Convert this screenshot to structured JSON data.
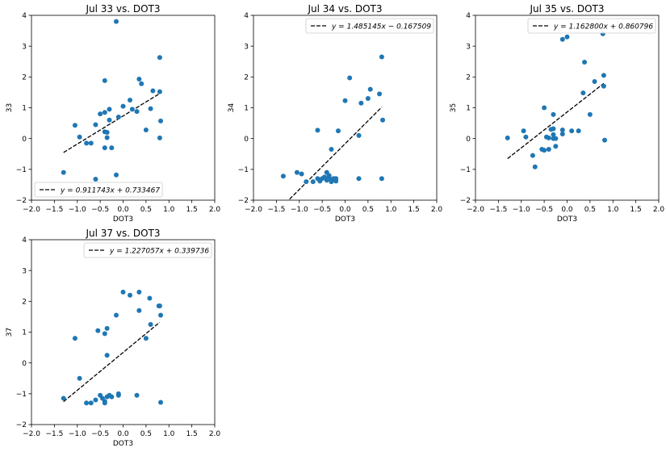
{
  "chart_data": [
    {
      "type": "scatter",
      "title": "Jul 33 vs. DOT3",
      "xlabel": "DOT3",
      "ylabel": "33",
      "xlim": [
        -2.0,
        2.0
      ],
      "ylim": [
        -2,
        4
      ],
      "xticks": [
        "−2.0",
        "−1.5",
        "−1.0",
        "−0.5",
        "0.0",
        "0.5",
        "1.0",
        "1.5",
        "2.0"
      ],
      "yticks": [
        "−2",
        "−1",
        "0",
        "1",
        "2",
        "3",
        "4"
      ],
      "legend": "bottom-left",
      "legend_text": "y = 0.911743x + 0.733467",
      "fit": {
        "slope": 0.911743,
        "intercept": 0.733467,
        "x_range": [
          -1.3,
          0.8
        ]
      },
      "point_color": "#1f77b4",
      "x": [
        -0.15,
        0.8,
        -0.4,
        0.35,
        0.4,
        0.65,
        0.8,
        -0.5,
        0.15,
        0.2,
        -0.4,
        -0.3,
        0.0,
        -0.1,
        0.6,
        0.5,
        0.3,
        -0.6,
        -0.4,
        -0.35,
        -0.3,
        -0.8,
        -0.95,
        -1.05,
        -0.7,
        -0.4,
        -0.25,
        -0.35,
        -0.6,
        -0.15,
        -1.3,
        0.82,
        0.8
      ],
      "y": [
        3.8,
        2.63,
        1.88,
        1.93,
        1.78,
        1.55,
        1.52,
        0.8,
        1.25,
        0.95,
        0.85,
        0.95,
        1.05,
        0.7,
        0.97,
        0.28,
        0.88,
        0.45,
        0.22,
        0.2,
        0.6,
        -0.15,
        0.05,
        0.43,
        -0.15,
        -0.3,
        -0.3,
        0.03,
        -1.32,
        -1.18,
        -1.1,
        0.57,
        0.02
      ]
    },
    {
      "type": "scatter",
      "title": "Jul 34 vs. DOT3",
      "xlabel": "DOT3",
      "ylabel": "34",
      "xlim": [
        -2.0,
        2.0
      ],
      "ylim": [
        -2,
        4
      ],
      "xticks": [
        "−2.0",
        "−1.5",
        "−1.0",
        "−0.5",
        "0.0",
        "0.5",
        "1.0",
        "1.5",
        "2.0"
      ],
      "yticks": [
        "−2",
        "−1",
        "0",
        "1",
        "2",
        "3",
        "4"
      ],
      "legend": "top-right",
      "legend_text": "y = 1.485145x − 0.167509",
      "fit": {
        "slope": 1.485145,
        "intercept": -0.167509,
        "x_range": [
          -1.3,
          0.8
        ]
      },
      "point_color": "#1f77b4",
      "x": [
        0.8,
        0.1,
        0.55,
        0.75,
        0.5,
        0.0,
        0.35,
        -0.6,
        -0.3,
        0.3,
        0.82,
        -0.15,
        -1.35,
        -1.05,
        -0.95,
        -0.85,
        -0.7,
        -0.6,
        -0.5,
        -0.45,
        -0.4,
        -0.35,
        -0.3,
        -0.25,
        -0.2,
        -0.3,
        -0.4,
        -0.35,
        0.3,
        0.8,
        -0.55,
        -0.2
      ],
      "y": [
        2.65,
        1.97,
        1.6,
        1.45,
        1.3,
        1.23,
        1.15,
        0.27,
        -0.35,
        0.1,
        0.6,
        0.25,
        -1.22,
        -1.1,
        -1.15,
        -1.4,
        -1.4,
        -1.3,
        -1.3,
        -1.25,
        -1.1,
        -1.2,
        -1.35,
        -1.3,
        -1.38,
        -1.4,
        -1.35,
        -1.25,
        -1.3,
        -1.3,
        -1.38,
        -1.3
      ]
    },
    {
      "type": "scatter",
      "title": "Jul 35 vs. DOT3",
      "xlabel": "DOT3",
      "ylabel": "35",
      "xlim": [
        -2.0,
        2.0
      ],
      "ylim": [
        -2,
        4
      ],
      "xticks": [
        "−2.0",
        "−1.5",
        "−1.0",
        "−0.5",
        "0.0",
        "0.5",
        "1.0",
        "1.5",
        "2.0"
      ],
      "yticks": [
        "−2",
        "−1",
        "0",
        "1",
        "2",
        "3",
        "4"
      ],
      "legend": "top-right",
      "legend_text": "y = 1.162800x + 0.860796",
      "fit": {
        "slope": 1.1628,
        "intercept": 0.860796,
        "x_range": [
          -1.3,
          0.8
        ]
      },
      "point_color": "#1f77b4",
      "x": [
        0.78,
        0.0,
        -0.1,
        0.38,
        0.8,
        0.6,
        0.8,
        0.35,
        0.5,
        -0.3,
        -0.5,
        -0.1,
        -0.1,
        0.1,
        0.25,
        -0.3,
        -0.35,
        -0.3,
        -0.4,
        -0.25,
        -0.45,
        -0.55,
        -0.95,
        -0.9,
        -1.3,
        -0.75,
        -0.4,
        -0.5,
        -0.7,
        -0.25,
        0.82,
        -0.3
      ],
      "y": [
        3.4,
        3.3,
        3.22,
        2.48,
        2.05,
        1.85,
        1.7,
        1.48,
        0.78,
        0.78,
        1.0,
        0.28,
        0.15,
        0.25,
        0.25,
        0.32,
        0.3,
        0.13,
        0.02,
        0.0,
        0.05,
        -0.35,
        0.25,
        0.05,
        0.02,
        -0.55,
        -0.35,
        -0.38,
        -0.92,
        -0.25,
        -0.05,
        0.0
      ]
    },
    {
      "type": "scatter",
      "title": "Jul 37 vs. DOT3",
      "xlabel": "DOT3",
      "ylabel": "37",
      "xlim": [
        -2.0,
        2.0
      ],
      "ylim": [
        -2,
        4
      ],
      "xticks": [
        "−2.0",
        "−1.5",
        "−1.0",
        "−0.5",
        "0.0",
        "0.5",
        "1.0",
        "1.5",
        "2.0"
      ],
      "yticks": [
        "−2",
        "−1",
        "0",
        "1",
        "2",
        "3",
        "4"
      ],
      "legend": "top-right",
      "legend_text": "y = 1.227057x + 0.339736",
      "fit": {
        "slope": 1.227057,
        "intercept": 0.339736,
        "x_range": [
          -1.3,
          0.8
        ]
      },
      "point_color": "#1f77b4",
      "x": [
        0.0,
        0.35,
        0.15,
        0.58,
        0.78,
        0.8,
        0.35,
        -0.15,
        0.6,
        0.82,
        0.5,
        -0.35,
        -0.4,
        -0.55,
        -1.05,
        -0.35,
        -0.95,
        -1.3,
        -0.8,
        -0.7,
        -0.6,
        -0.5,
        -0.45,
        -0.4,
        -0.35,
        -0.3,
        -0.25,
        -0.1,
        -0.1,
        0.3,
        0.82,
        -0.4
      ],
      "y": [
        2.3,
        2.3,
        2.2,
        2.1,
        1.85,
        1.85,
        1.7,
        1.55,
        1.25,
        1.55,
        0.8,
        1.12,
        0.95,
        1.05,
        0.8,
        0.25,
        -0.5,
        -1.15,
        -1.3,
        -1.3,
        -1.2,
        -1.05,
        -1.15,
        -1.25,
        -1.1,
        -1.05,
        -1.1,
        -1.05,
        -1.0,
        -1.05,
        -1.28,
        -1.3
      ]
    }
  ]
}
